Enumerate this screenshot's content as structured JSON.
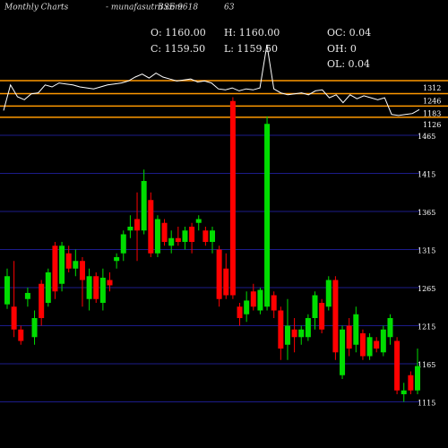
{
  "header": {
    "title": "Monthly Charts",
    "site": "- munafasutra.com",
    "symbol": "BSE 9618",
    "code": "63"
  },
  "ohlc_info": [
    "O: 1160.00",
    "H: 1160.00",
    "OC: 0.04",
    "C: 1159.50",
    "L: 1159.50",
    "OH: 0",
    "OL: 0.04"
  ],
  "chart_data": [
    {
      "type": "line",
      "color": "#ffffff",
      "level_color": "#ff9900",
      "ylim": [
        1080,
        1500
      ],
      "levels": [
        1312,
        1246,
        1183,
        1126
      ],
      "values": [
        1160,
        1290,
        1230,
        1215,
        1245,
        1250,
        1290,
        1280,
        1300,
        1295,
        1290,
        1280,
        1275,
        1270,
        1280,
        1290,
        1295,
        1300,
        1310,
        1330,
        1345,
        1325,
        1350,
        1330,
        1320,
        1310,
        1315,
        1320,
        1305,
        1310,
        1300,
        1270,
        1265,
        1275,
        1260,
        1270,
        1265,
        1275,
        1494,
        1270,
        1250,
        1240,
        1245,
        1250,
        1240,
        1260,
        1265,
        1225,
        1240,
        1200,
        1240,
        1220,
        1235,
        1225,
        1215,
        1225,
        1140,
        1135,
        1140,
        1145,
        1165
      ]
    },
    {
      "type": "candlestick",
      "up_color": "#00dd00",
      "down_color": "#ff0000",
      "grid": true,
      "grid_color": "#1c1c8a",
      "ylim": [
        1100,
        1520
      ],
      "yticks": [
        1465,
        1415,
        1365,
        1315,
        1265,
        1215,
        1165,
        1115
      ],
      "open": [
        1243,
        1240,
        1210,
        1250,
        1200,
        1270,
        1245,
        1320,
        1270,
        1310,
        1290,
        1300,
        1250,
        1280,
        1245,
        1275,
        1300,
        1310,
        1340,
        1355,
        1340,
        1380,
        1310,
        1350,
        1320,
        1330,
        1325,
        1345,
        1350,
        1340,
        1325,
        1315,
        1290,
        1510,
        1240,
        1230,
        1260,
        1235,
        1240,
        1255,
        1235,
        1190,
        1210,
        1200,
        1200,
        1225,
        1245,
        1240,
        1275,
        1150,
        1215,
        1190,
        1205,
        1175,
        1195,
        1180,
        1200,
        1195,
        1125,
        1150,
        1130
      ],
      "high": [
        1290,
        1300,
        1215,
        1265,
        1235,
        1275,
        1290,
        1325,
        1325,
        1320,
        1315,
        1305,
        1290,
        1285,
        1290,
        1285,
        1310,
        1340,
        1360,
        1390,
        1420,
        1390,
        1360,
        1355,
        1340,
        1345,
        1345,
        1350,
        1360,
        1345,
        1345,
        1320,
        1310,
        1515,
        1245,
        1260,
        1270,
        1265,
        1490,
        1260,
        1240,
        1250,
        1225,
        1215,
        1230,
        1260,
        1250,
        1280,
        1280,
        1215,
        1225,
        1240,
        1210,
        1205,
        1200,
        1215,
        1230,
        1200,
        1140,
        1155,
        1185
      ],
      "low": [
        1237,
        1200,
        1190,
        1240,
        1190,
        1215,
        1240,
        1250,
        1260,
        1285,
        1280,
        1240,
        1235,
        1245,
        1235,
        1260,
        1290,
        1300,
        1330,
        1300,
        1335,
        1305,
        1305,
        1320,
        1310,
        1320,
        1315,
        1310,
        1340,
        1320,
        1310,
        1240,
        1250,
        1250,
        1215,
        1220,
        1235,
        1230,
        1235,
        1225,
        1170,
        1170,
        1180,
        1190,
        1195,
        1210,
        1205,
        1235,
        1170,
        1145,
        1175,
        1180,
        1170,
        1170,
        1180,
        1175,
        1190,
        1125,
        1115,
        1125,
        1125
      ],
      "close": [
        1280,
        1210,
        1195,
        1258,
        1225,
        1225,
        1285,
        1260,
        1320,
        1290,
        1300,
        1275,
        1280,
        1250,
        1278,
        1268,
        1305,
        1335,
        1345,
        1340,
        1405,
        1310,
        1355,
        1325,
        1330,
        1325,
        1340,
        1325,
        1355,
        1325,
        1340,
        1250,
        1255,
        1255,
        1225,
        1248,
        1240,
        1262,
        1480,
        1235,
        1185,
        1215,
        1200,
        1210,
        1225,
        1255,
        1210,
        1275,
        1180,
        1210,
        1185,
        1230,
        1175,
        1200,
        1185,
        1210,
        1225,
        1130,
        1130,
        1130,
        1162
      ]
    }
  ]
}
